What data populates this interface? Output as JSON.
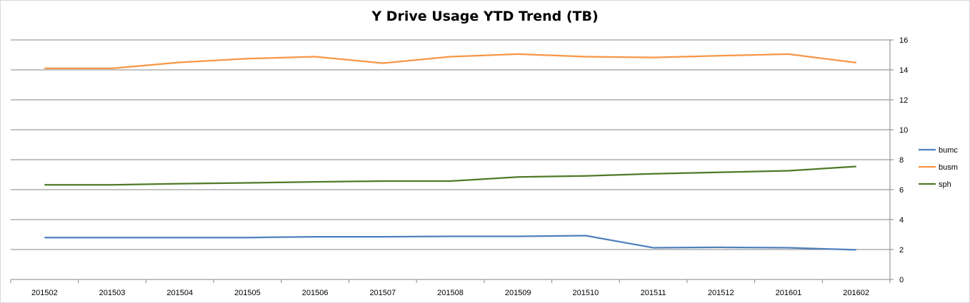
{
  "chart_data": {
    "type": "line",
    "title": "Y Drive Usage YTD Trend (TB)",
    "xlabel": "",
    "ylabel": "",
    "categories": [
      "201502",
      "201503",
      "201504",
      "201505",
      "201506",
      "201507",
      "201508",
      "201509",
      "201510",
      "201511",
      "201512",
      "201601",
      "201602"
    ],
    "ylim": [
      0,
      16
    ],
    "yticks": [
      0,
      2,
      4,
      6,
      8,
      10,
      12,
      14,
      16
    ],
    "y_axis_side": "right",
    "grid": true,
    "legend_position": "right",
    "series": [
      {
        "name": "bumc",
        "color": "#4f81bd",
        "values": [
          2.8,
          2.8,
          2.8,
          2.8,
          2.85,
          2.85,
          2.88,
          2.88,
          2.93,
          2.12,
          2.15,
          2.12,
          1.98
        ]
      },
      {
        "name": "busm",
        "color": "#f79646",
        "values": [
          14.1,
          14.1,
          14.5,
          14.75,
          14.88,
          14.45,
          14.88,
          15.05,
          14.88,
          14.83,
          14.95,
          15.05,
          14.48
        ]
      },
      {
        "name": "sph",
        "color": "#4f7a28",
        "values": [
          6.32,
          6.32,
          6.4,
          6.45,
          6.52,
          6.57,
          6.57,
          6.85,
          6.92,
          7.06,
          7.16,
          7.26,
          7.55
        ]
      }
    ]
  }
}
